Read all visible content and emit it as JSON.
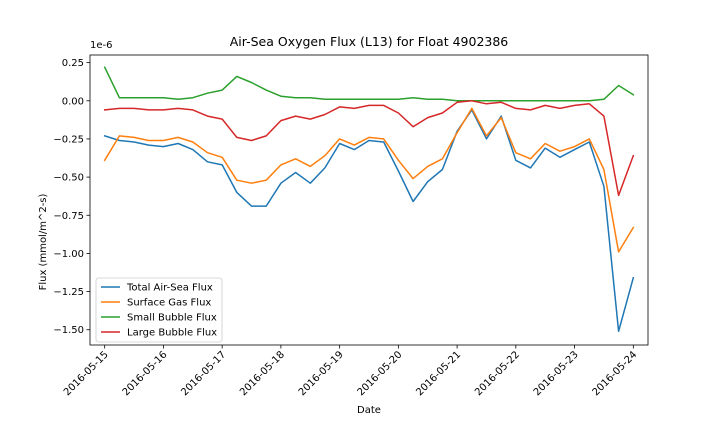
{
  "chart_data": {
    "type": "line",
    "title": "Air-Sea Oxygen Flux (L13) for Float 4902386",
    "xlabel": "Date",
    "ylabel": "Flux (mmol/m^2-s)",
    "y_offset_text": "1e-6",
    "ylim": [
      -1.6,
      0.3
    ],
    "xlim": [
      "2016-05-14T18:00",
      "2016-05-24T06:00"
    ],
    "yticks": [
      0.25,
      0.0,
      -0.25,
      -0.5,
      -0.75,
      -1.0,
      -1.25,
      -1.5
    ],
    "ytick_labels": [
      "0.25",
      "0.00",
      "−0.25",
      "−0.50",
      "−0.75",
      "−1.00",
      "−1.25",
      "−1.50"
    ],
    "xticks": [
      "2016-05-15",
      "2016-05-16",
      "2016-05-17",
      "2016-05-18",
      "2016-05-19",
      "2016-05-20",
      "2016-05-21",
      "2016-05-22",
      "2016-05-23",
      "2016-05-24"
    ],
    "grid": false,
    "legend_position": "lower-left",
    "x": [
      "2016-05-15T00:00",
      "2016-05-15T06:00",
      "2016-05-15T12:00",
      "2016-05-15T18:00",
      "2016-05-16T00:00",
      "2016-05-16T06:00",
      "2016-05-16T12:00",
      "2016-05-16T18:00",
      "2016-05-17T00:00",
      "2016-05-17T06:00",
      "2016-05-17T12:00",
      "2016-05-17T18:00",
      "2016-05-18T00:00",
      "2016-05-18T06:00",
      "2016-05-18T12:00",
      "2016-05-18T18:00",
      "2016-05-19T00:00",
      "2016-05-19T06:00",
      "2016-05-19T12:00",
      "2016-05-19T18:00",
      "2016-05-20T00:00",
      "2016-05-20T06:00",
      "2016-05-20T12:00",
      "2016-05-20T18:00",
      "2016-05-21T00:00",
      "2016-05-21T06:00",
      "2016-05-21T12:00",
      "2016-05-21T18:00",
      "2016-05-22T00:00",
      "2016-05-22T06:00",
      "2016-05-22T12:00",
      "2016-05-22T18:00",
      "2016-05-23T00:00",
      "2016-05-23T06:00",
      "2016-05-23T12:00",
      "2016-05-23T18:00",
      "2016-05-24T00:00"
    ],
    "series": [
      {
        "name": "Total Air-Sea Flux",
        "color": "#1f77b4",
        "values": [
          -0.23,
          -0.26,
          -0.27,
          -0.29,
          -0.3,
          -0.28,
          -0.32,
          -0.4,
          -0.42,
          -0.6,
          -0.69,
          -0.69,
          -0.54,
          -0.47,
          -0.54,
          -0.44,
          -0.28,
          -0.32,
          -0.26,
          -0.27,
          -0.46,
          -0.66,
          -0.53,
          -0.45,
          -0.2,
          -0.06,
          -0.25,
          -0.1,
          -0.39,
          -0.44,
          -0.31,
          -0.37,
          -0.32,
          -0.27,
          -0.56,
          -1.51,
          -1.16
        ]
      },
      {
        "name": "Surface Gas Flux",
        "color": "#ff7f0e",
        "values": [
          -0.39,
          -0.23,
          -0.24,
          -0.26,
          -0.26,
          -0.24,
          -0.27,
          -0.34,
          -0.37,
          -0.52,
          -0.54,
          -0.52,
          -0.42,
          -0.38,
          -0.43,
          -0.36,
          -0.25,
          -0.29,
          -0.24,
          -0.25,
          -0.39,
          -0.51,
          -0.43,
          -0.38,
          -0.21,
          -0.05,
          -0.23,
          -0.11,
          -0.34,
          -0.38,
          -0.28,
          -0.33,
          -0.3,
          -0.25,
          -0.45,
          -0.99,
          -0.83
        ]
      },
      {
        "name": "Small Bubble Flux",
        "color": "#2ca02c",
        "values": [
          0.22,
          0.02,
          0.02,
          0.02,
          0.02,
          0.01,
          0.02,
          0.05,
          0.07,
          0.16,
          0.12,
          0.07,
          0.03,
          0.02,
          0.02,
          0.01,
          0.01,
          0.01,
          0.01,
          0.01,
          0.01,
          0.02,
          0.01,
          0.01,
          0.0,
          0.0,
          0.0,
          0.0,
          0.0,
          0.0,
          0.0,
          0.0,
          0.0,
          0.0,
          0.01,
          0.1,
          0.04
        ]
      },
      {
        "name": "Large Bubble Flux",
        "color": "#d62728",
        "values": [
          -0.06,
          -0.05,
          -0.05,
          -0.06,
          -0.06,
          -0.05,
          -0.06,
          -0.1,
          -0.12,
          -0.24,
          -0.26,
          -0.23,
          -0.13,
          -0.1,
          -0.12,
          -0.09,
          -0.04,
          -0.05,
          -0.03,
          -0.03,
          -0.08,
          -0.17,
          -0.11,
          -0.08,
          -0.01,
          0.0,
          -0.02,
          -0.01,
          -0.05,
          -0.06,
          -0.03,
          -0.05,
          -0.03,
          -0.02,
          -0.1,
          -0.62,
          -0.36
        ]
      }
    ]
  }
}
